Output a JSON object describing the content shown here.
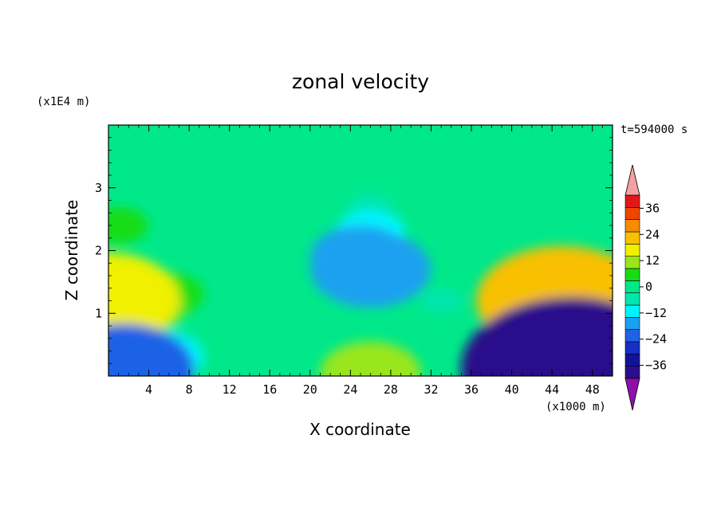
{
  "chart_data": {
    "type": "heatmap",
    "title": "zonal velocity",
    "xlabel": "X coordinate",
    "ylabel": "Z coordinate",
    "x_unit": "(x1000 m)",
    "y_unit": "(x1E4 m)",
    "time_label": "t=594000 s",
    "x_range": [
      0,
      50
    ],
    "y_range": [
      0,
      4
    ],
    "x_ticks": [
      4,
      8,
      12,
      16,
      20,
      24,
      28,
      32,
      36,
      40,
      44,
      48
    ],
    "y_ticks": [
      1,
      2,
      3
    ],
    "colorbar": {
      "levels": [
        -42,
        -36,
        -30,
        -24,
        -18,
        -12,
        -6,
        0,
        6,
        12,
        18,
        24,
        30,
        36,
        42
      ],
      "tick_labels": [
        -36,
        -24,
        -12,
        0,
        12,
        24,
        36
      ],
      "colors": [
        "#2c0e8a",
        "#13139a",
        "#1530c8",
        "#1f62e6",
        "#1aa0f0",
        "#00f4ff",
        "#00e6b0",
        "#00e88a",
        "#14dd14",
        "#9ae61a",
        "#f0f000",
        "#f8c000",
        "#f88c00",
        "#f04400",
        "#e01818"
      ],
      "under_color": "#8e10a8",
      "over_color": "#f4a0a0"
    },
    "features": [
      {
        "x": 0,
        "z": 1.25,
        "value": 22
      },
      {
        "x": 2.5,
        "z": 1.1,
        "value": 14
      },
      {
        "x": 6,
        "z": 1.3,
        "value": 8
      },
      {
        "x": 1,
        "z": 2.4,
        "value": 6
      },
      {
        "x": 26,
        "z": 1.7,
        "value": -18
      },
      {
        "x": 25,
        "z": 1.9,
        "value": -14
      },
      {
        "x": 26,
        "z": 2.3,
        "value": -8
      },
      {
        "x": 26,
        "z": 2.7,
        "value": -3
      },
      {
        "x": 45,
        "z": 1.2,
        "value": 28
      },
      {
        "x": 44,
        "z": 1.1,
        "value": 20
      },
      {
        "x": 43,
        "z": 1.6,
        "value": 10
      },
      {
        "x": 46,
        "z": 0.12,
        "value": -38
      },
      {
        "x": 44,
        "z": 0.3,
        "value": -22
      },
      {
        "x": 1.5,
        "z": 0.12,
        "value": -22
      },
      {
        "x": 5,
        "z": 0.3,
        "value": -12
      },
      {
        "x": 26,
        "z": 0.05,
        "value": 14
      },
      {
        "x": 20,
        "z": 3.6,
        "value": 4
      },
      {
        "x": 35,
        "z": 3.7,
        "value": 2
      },
      {
        "x": 3,
        "z": 3.7,
        "value": 1
      },
      {
        "x": 14,
        "z": 1.1,
        "value": 3
      },
      {
        "x": 33,
        "z": 1.2,
        "value": -2
      },
      {
        "x": 18,
        "z": 0.6,
        "value": 4
      }
    ]
  }
}
